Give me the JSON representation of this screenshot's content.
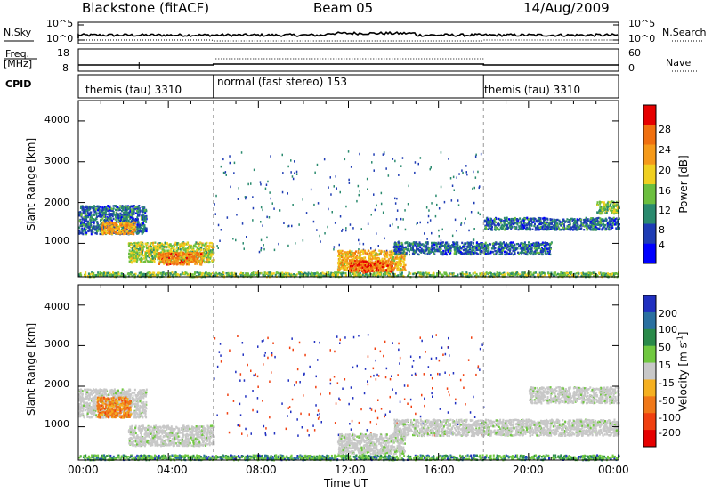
{
  "header": {
    "station": "Blackstone (fitACF)",
    "beam": "Beam 05",
    "date": "14/Aug/2009"
  },
  "strip1": {
    "left_label": "N.Sky",
    "right_label": "N.Search",
    "left_ticks": [
      "10^5",
      "10^0"
    ],
    "right_ticks": [
      "10^5",
      "10^0"
    ]
  },
  "strip2": {
    "left_label_1": "Freq.",
    "left_label_2": "[MHz]",
    "right_label": "Nave",
    "left_ticks": [
      "18",
      "8"
    ],
    "right_ticks": [
      "60",
      "0"
    ]
  },
  "cpid": {
    "label": "CPID",
    "segments": [
      {
        "name": "themis (tau) 3310",
        "start": 0,
        "end": 6
      },
      {
        "name": "normal (fast stereo) 153",
        "start": 6,
        "end": 18
      },
      {
        "name": "themis (tau) 3310",
        "start": 18,
        "end": 24
      }
    ]
  },
  "chart_data": [
    {
      "type": "heatmap",
      "panel": "power",
      "xlabel": "",
      "ylabel": "Slant Range [km]",
      "x_range_hours": [
        0,
        24
      ],
      "ylim": [
        180,
        4500
      ],
      "y_ticks": [
        "1000",
        "2000",
        "3000",
        "4000"
      ],
      "colorbar": {
        "label": "Power [dB]",
        "ticks": [
          "4",
          "8",
          "12",
          "16",
          "20",
          "24",
          "28"
        ],
        "range": [
          0,
          30
        ],
        "colors": [
          "#0000ff",
          "#1e3cb4",
          "#2a8a6e",
          "#6cbf3f",
          "#f0d020",
          "#f59a1a",
          "#f07010",
          "#e60000"
        ]
      },
      "features": [
        {
          "x_start": 0.0,
          "x_end": 3.0,
          "range_center": 1600,
          "range_width": 700,
          "intensity": 8
        },
        {
          "x_start": 1.0,
          "x_end": 2.5,
          "range_center": 1400,
          "range_width": 300,
          "intensity": 22
        },
        {
          "x_start": 2.2,
          "x_end": 6.0,
          "range_center": 800,
          "range_width": 500,
          "intensity": 16
        },
        {
          "x_start": 3.5,
          "x_end": 5.5,
          "range_center": 650,
          "range_width": 300,
          "intensity": 24
        },
        {
          "x_start": 11.5,
          "x_end": 14.5,
          "range_center": 600,
          "range_width": 500,
          "intensity": 20
        },
        {
          "x_start": 12.0,
          "x_end": 14.0,
          "range_center": 450,
          "range_width": 300,
          "intensity": 26
        },
        {
          "x_start": 14.0,
          "x_end": 21.0,
          "range_center": 900,
          "range_width": 300,
          "intensity": 8
        },
        {
          "x_start": 18.0,
          "x_end": 24.0,
          "range_center": 1500,
          "range_width": 300,
          "intensity": 8
        },
        {
          "x_start": 23.0,
          "x_end": 24.0,
          "range_center": 1900,
          "range_width": 300,
          "intensity": 14
        },
        {
          "x_start": 0.0,
          "x_end": 24.0,
          "range_center": 250,
          "range_width": 120,
          "intensity": 14
        }
      ]
    },
    {
      "type": "heatmap",
      "panel": "velocity",
      "xlabel": "Time UT",
      "ylabel": "Slant Range [km]",
      "x_range_hours": [
        0,
        24
      ],
      "x_ticks": [
        "00:00",
        "04:00",
        "08:00",
        "12:00",
        "16:00",
        "20:00",
        "00:00"
      ],
      "ylim": [
        180,
        4500
      ],
      "y_ticks": [
        "1000",
        "2000",
        "3000",
        "4000"
      ],
      "colorbar": {
        "label": "Velocity [m s",
        "label_sup": "-1",
        "label_end": "]",
        "ticks": [
          "200",
          "100",
          "50",
          "15",
          "-15",
          "-50",
          "-100",
          "-200"
        ],
        "colors": [
          "#2030c0",
          "#2a70a0",
          "#2a8a4a",
          "#70c840",
          "#c8c8c8",
          "#f5b020",
          "#f07818",
          "#f04010",
          "#e60000"
        ]
      },
      "features": [
        {
          "x_start": 0.0,
          "x_end": 3.0,
          "range_center": 1600,
          "range_width": 700,
          "category": "ground"
        },
        {
          "x_start": 0.8,
          "x_end": 2.3,
          "range_center": 1500,
          "range_width": 500,
          "category": "negative"
        },
        {
          "x_start": 2.2,
          "x_end": 6.0,
          "range_center": 800,
          "range_width": 500,
          "category": "ground"
        },
        {
          "x_start": 11.5,
          "x_end": 14.5,
          "range_center": 600,
          "range_width": 500,
          "category": "ground"
        },
        {
          "x_start": 14.0,
          "x_end": 24.0,
          "range_center": 1000,
          "range_width": 400,
          "category": "ground"
        },
        {
          "x_start": 20.0,
          "x_end": 24.0,
          "range_center": 1800,
          "range_width": 400,
          "category": "ground"
        },
        {
          "x_start": 0.0,
          "x_end": 24.0,
          "range_center": 250,
          "range_width": 150,
          "category": "positive"
        }
      ]
    }
  ]
}
